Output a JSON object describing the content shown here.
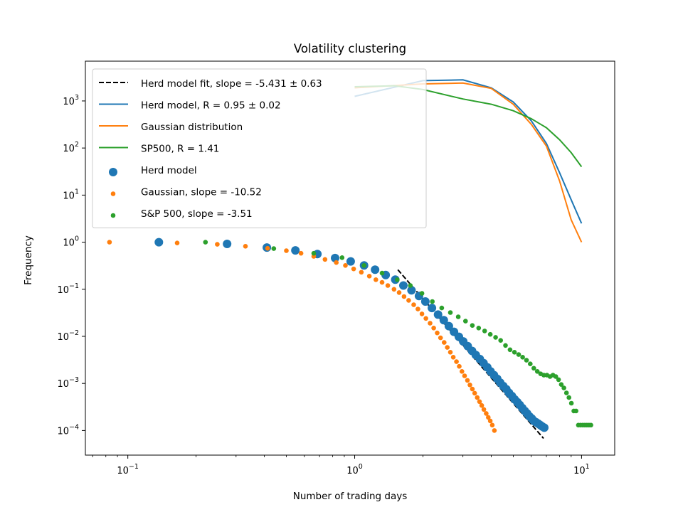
{
  "chart_data": {
    "type": "scatter",
    "title": "Volatility clustering",
    "xlabel": "Number of trading days",
    "ylabel": "Frequency",
    "xscale": "log",
    "yscale": "log",
    "xlim": [
      0.065,
      14
    ],
    "ylim": [
      3e-05,
      7000
    ],
    "xticks": [
      {
        "value": 0.1,
        "base": "10",
        "exp": "−1"
      },
      {
        "value": 1,
        "base": "10",
        "exp": "0"
      },
      {
        "value": 10,
        "base": "10",
        "exp": "1"
      }
    ],
    "yticks": [
      {
        "value": 0.0001,
        "base": "10",
        "exp": "−4"
      },
      {
        "value": 0.001,
        "base": "10",
        "exp": "−3"
      },
      {
        "value": 0.01,
        "base": "10",
        "exp": "−2"
      },
      {
        "value": 0.1,
        "base": "10",
        "exp": "−1"
      },
      {
        "value": 1,
        "base": "10",
        "exp": "0"
      },
      {
        "value": 10,
        "base": "10",
        "exp": "1"
      },
      {
        "value": 100,
        "base": "10",
        "exp": "2"
      },
      {
        "value": 1000,
        "base": "10",
        "exp": "3"
      }
    ],
    "grid": false,
    "legend_position": "top-left",
    "colors": {
      "herd": "#1f77b4",
      "gaussian": "#ff7f0e",
      "sp500": "#2ca02c",
      "fit": "#000000"
    },
    "series": [
      {
        "name": "Herd model fit, slope = -5.431 ± 0.63",
        "kind": "line",
        "style": "dashed",
        "color": "#000000",
        "x": [
          1.55,
          6.8
        ],
        "y": [
          0.26,
          6.8e-05
        ]
      },
      {
        "name": "Herd model, R = 0.95 ± 0.02",
        "kind": "line",
        "color": "#1f77b4",
        "x": [
          1,
          2,
          3,
          4,
          5,
          6,
          7,
          8,
          9,
          10
        ],
        "y": [
          1250,
          2700,
          2800,
          1900,
          950,
          380,
          125,
          30,
          8,
          2.5
        ]
      },
      {
        "name": "Gaussian distribution",
        "kind": "line",
        "color": "#ff7f0e",
        "x": [
          1,
          2,
          3,
          4,
          5,
          6,
          7,
          8,
          9,
          10
        ],
        "y": [
          1900,
          2300,
          2400,
          1850,
          850,
          320,
          110,
          20,
          3,
          1
        ]
      },
      {
        "name": "SP500, R = 1.41",
        "kind": "line",
        "color": "#2ca02c",
        "x": [
          1,
          1.5,
          2,
          3,
          4,
          5,
          6,
          7,
          8,
          9,
          10
        ],
        "y": [
          2000,
          2100,
          1750,
          1100,
          850,
          620,
          420,
          270,
          150,
          80,
          40
        ]
      },
      {
        "name": "Herd model",
        "kind": "scatter",
        "color": "#1f77b4",
        "size": "large",
        "x": [
          0.137,
          0.274,
          0.41,
          0.548,
          0.685,
          0.82,
          0.96,
          1.1,
          1.23,
          1.37,
          1.51,
          1.64,
          1.78,
          1.92,
          2.05,
          2.19,
          2.33,
          2.47,
          2.6,
          2.74,
          2.88,
          3.01,
          3.15,
          3.29,
          3.42,
          3.56,
          3.7,
          3.84,
          3.97,
          4.11,
          4.25,
          4.38,
          4.52,
          4.66,
          4.79,
          4.93,
          5.07,
          5.21,
          5.34,
          5.48,
          5.62,
          5.75,
          5.89,
          6.03,
          6.16,
          6.3,
          6.44,
          6.58,
          6.71,
          6.85
        ],
        "y": [
          1.0,
          0.92,
          0.77,
          0.67,
          0.56,
          0.46,
          0.39,
          0.32,
          0.26,
          0.2,
          0.16,
          0.12,
          0.095,
          0.072,
          0.055,
          0.04,
          0.029,
          0.022,
          0.0165,
          0.0125,
          0.0098,
          0.0078,
          0.0062,
          0.0049,
          0.004,
          0.0033,
          0.0027,
          0.0022,
          0.0018,
          0.0015,
          0.00125,
          0.00104,
          0.00088,
          0.00075,
          0.00063,
          0.00054,
          0.00046,
          0.0004,
          0.00035,
          0.0003,
          0.00026,
          0.00023,
          0.0002,
          0.00018,
          0.00016,
          0.00015,
          0.00014,
          0.00013,
          0.000122,
          0.000115
        ]
      },
      {
        "name": "Gaussian, slope = -10.52",
        "kind": "scatter",
        "color": "#ff7f0e",
        "size": "small",
        "x": [
          0.083,
          0.165,
          0.248,
          0.33,
          0.413,
          0.5,
          0.58,
          0.66,
          0.74,
          0.83,
          0.91,
          0.99,
          1.07,
          1.16,
          1.24,
          1.32,
          1.4,
          1.49,
          1.57,
          1.65,
          1.73,
          1.82,
          1.9,
          1.98,
          2.06,
          2.15,
          2.23,
          2.31,
          2.39,
          2.48,
          2.56,
          2.64,
          2.72,
          2.81,
          2.89,
          2.97,
          3.05,
          3.14,
          3.22,
          3.3,
          3.38,
          3.47,
          3.55,
          3.63,
          3.71,
          3.8,
          3.88,
          3.96,
          4.04,
          4.13
        ],
        "y": [
          1.0,
          0.96,
          0.9,
          0.82,
          0.74,
          0.66,
          0.58,
          0.5,
          0.43,
          0.37,
          0.32,
          0.27,
          0.23,
          0.19,
          0.16,
          0.14,
          0.12,
          0.1,
          0.085,
          0.07,
          0.058,
          0.047,
          0.038,
          0.03,
          0.024,
          0.019,
          0.015,
          0.0118,
          0.0093,
          0.0074,
          0.0058,
          0.0046,
          0.0036,
          0.0029,
          0.0023,
          0.0018,
          0.00145,
          0.00116,
          0.00093,
          0.00076,
          0.00062,
          0.0005,
          0.00041,
          0.00034,
          0.00028,
          0.00023,
          0.00019,
          0.00016,
          0.00013,
          0.0001
        ]
      },
      {
        "name": "S&P 500, slope = -3.51",
        "kind": "scatter",
        "color": "#2ca02c",
        "size": "small",
        "x": [
          0.22,
          0.44,
          0.66,
          0.88,
          1.1,
          1.32,
          1.54,
          1.76,
          1.98,
          2.2,
          2.42,
          2.64,
          2.86,
          3.08,
          3.3,
          3.52,
          3.74,
          3.96,
          4.18,
          4.4,
          4.62,
          4.84,
          5.06,
          5.28,
          5.5,
          5.72,
          5.94,
          6.16,
          6.38,
          6.6,
          6.82,
          7.04,
          7.26,
          7.48,
          7.7,
          7.92,
          8.14,
          8.36,
          8.58,
          8.8,
          9.02,
          9.24,
          9.46,
          9.68,
          9.9,
          10.12,
          10.34,
          10.56,
          10.78,
          11.0
        ],
        "y": [
          1.0,
          0.73,
          0.58,
          0.47,
          0.32,
          0.22,
          0.16,
          0.12,
          0.082,
          0.055,
          0.04,
          0.032,
          0.026,
          0.021,
          0.017,
          0.015,
          0.013,
          0.011,
          0.0095,
          0.0082,
          0.0064,
          0.0052,
          0.0046,
          0.0041,
          0.0036,
          0.0031,
          0.0026,
          0.0021,
          0.0018,
          0.0016,
          0.0015,
          0.0015,
          0.0014,
          0.0015,
          0.0014,
          0.0012,
          0.00095,
          0.0008,
          0.00063,
          0.0005,
          0.00038,
          0.00026,
          0.00026,
          0.00013,
          0.00013,
          0.00013,
          0.00013,
          0.00013,
          0.00013,
          0.00013
        ]
      }
    ]
  }
}
